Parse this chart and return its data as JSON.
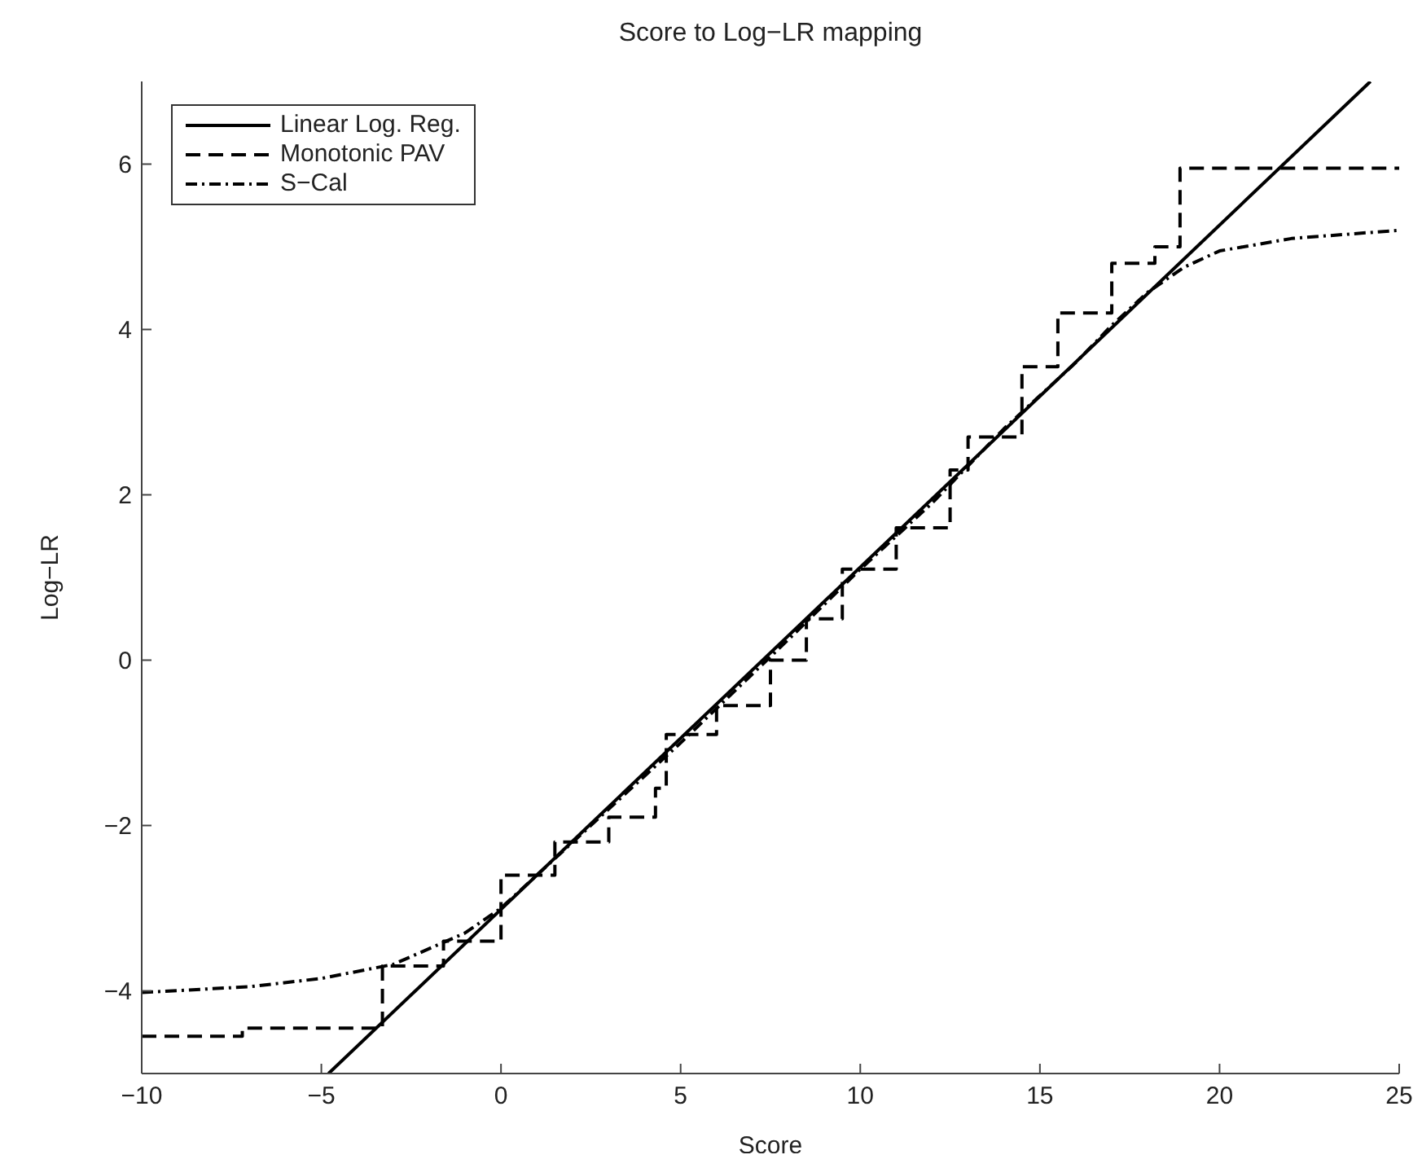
{
  "chart_data": {
    "type": "line",
    "title": "Score to Log−LR mapping",
    "xlabel": "Score",
    "ylabel": "Log−LR",
    "xlim": [
      -10,
      25
    ],
    "ylim": [
      -5,
      7
    ],
    "xticks": [
      -10,
      -5,
      0,
      5,
      10,
      15,
      20,
      25
    ],
    "yticks": [
      -4,
      -2,
      0,
      2,
      4,
      6
    ],
    "grid": false,
    "legend": "top left",
    "marker": "none",
    "series": [
      {
        "name": "Linear Log. Reg.",
        "color": "#000000",
        "line_style": "solid",
        "x": [
          -4.8,
          24.2
        ],
        "values": [
          -5,
          7
        ]
      },
      {
        "name": "Monotonic PAV",
        "type": "step",
        "color": "#000000",
        "line_style": "dashed",
        "x": [
          -10,
          -7.2,
          -3.3,
          -1.6,
          0,
          1.5,
          3,
          4.3,
          4.6,
          6,
          7.5,
          8.5,
          9.5,
          11,
          12.5,
          13,
          14.5,
          15.5,
          17,
          18.2,
          18.9,
          25
        ],
        "values": [
          -4.55,
          -4.45,
          -3.7,
          -3.4,
          -2.6,
          -2.2,
          -1.9,
          -1.55,
          -0.9,
          -0.55,
          0,
          0.5,
          1.1,
          1.6,
          2.3,
          2.7,
          3.55,
          4.2,
          4.8,
          5,
          5.95,
          5.95
        ]
      },
      {
        "name": "S−Cal",
        "color": "#000000",
        "line_style": "dotted",
        "x": [
          -10,
          -7,
          -5,
          -3,
          -1,
          0,
          2,
          5,
          8,
          10,
          12,
          14,
          16,
          17,
          18,
          19,
          20,
          22,
          25
        ],
        "values": [
          -4.02,
          -3.95,
          -3.85,
          -3.68,
          -3.3,
          -3,
          -2.2,
          -1,
          0.25,
          1.1,
          1.9,
          2.8,
          3.6,
          4.05,
          4.45,
          4.75,
          4.95,
          5.1,
          5.2
        ]
      }
    ]
  }
}
